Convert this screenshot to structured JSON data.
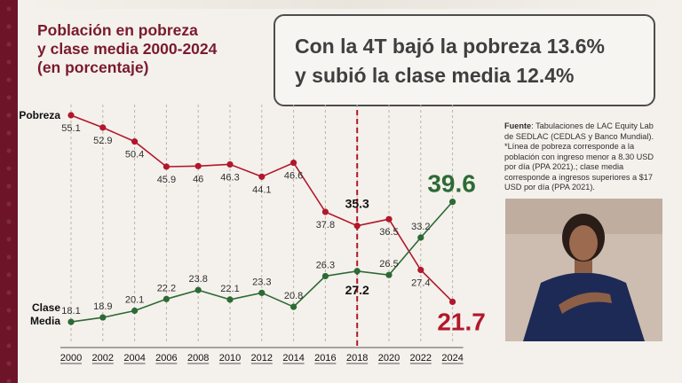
{
  "title_lines": [
    "Población en pobreza",
    "y clase media 2000-2024",
    "(en porcentaje)"
  ],
  "headline_lines": [
    "Con la 4T bajó la pobreza 13.6%",
    "y subió la clase media 12.4%"
  ],
  "source": {
    "label": "Fuente",
    "text": ": Tabulaciones de LAC Equity Lab de SEDLAC (CEDLAS y Banco Mundial).",
    "note": "*Línea de pobreza corresponde a la población con ingreso menor a 8.30 USD por día (PPA 2021).; clase media corresponde a ingresos superiores a $17 USD por día (PPA 2021)."
  },
  "colors": {
    "accent": "#7a1a2f",
    "band": "#6d1428",
    "pobreza": "#b2172b",
    "clase_media": "#2d6a35",
    "text": "#3f3f3f"
  },
  "chart_data": {
    "type": "line",
    "x": [
      "2000",
      "2002",
      "2004",
      "2006",
      "2008",
      "2010",
      "2012",
      "2014",
      "2016",
      "2018",
      "2020",
      "2022",
      "2024"
    ],
    "series": [
      {
        "name": "Pobreza",
        "values": [
          55.1,
          52.9,
          50.4,
          45.9,
          46,
          46.3,
          44.1,
          46.6,
          37.8,
          35.3,
          36.5,
          27.4,
          21.7
        ],
        "labels": [
          "55.1",
          "52.9",
          "50.4",
          "45.9",
          "46",
          "46.3",
          "44.1",
          "46.6",
          "37.8",
          "35.3",
          "36.5",
          "27.4",
          "21.7"
        ]
      },
      {
        "name": "Clase Media",
        "name_lines": [
          "Clase",
          "Media"
        ],
        "values": [
          18.1,
          18.9,
          20.1,
          22.2,
          23.8,
          22.1,
          23.3,
          20.8,
          26.3,
          27.2,
          26.5,
          33.2,
          39.6
        ],
        "labels": [
          "18.1",
          "18.9",
          "20.1",
          "22.2",
          "23.8",
          "22.1",
          "23.3",
          "20.8",
          "26.3",
          "27.2",
          "26.5",
          "33.2",
          "39.6"
        ]
      }
    ],
    "highlight_year": "2018",
    "grid": "vertical dashed",
    "legend": "labels at left of each series"
  }
}
